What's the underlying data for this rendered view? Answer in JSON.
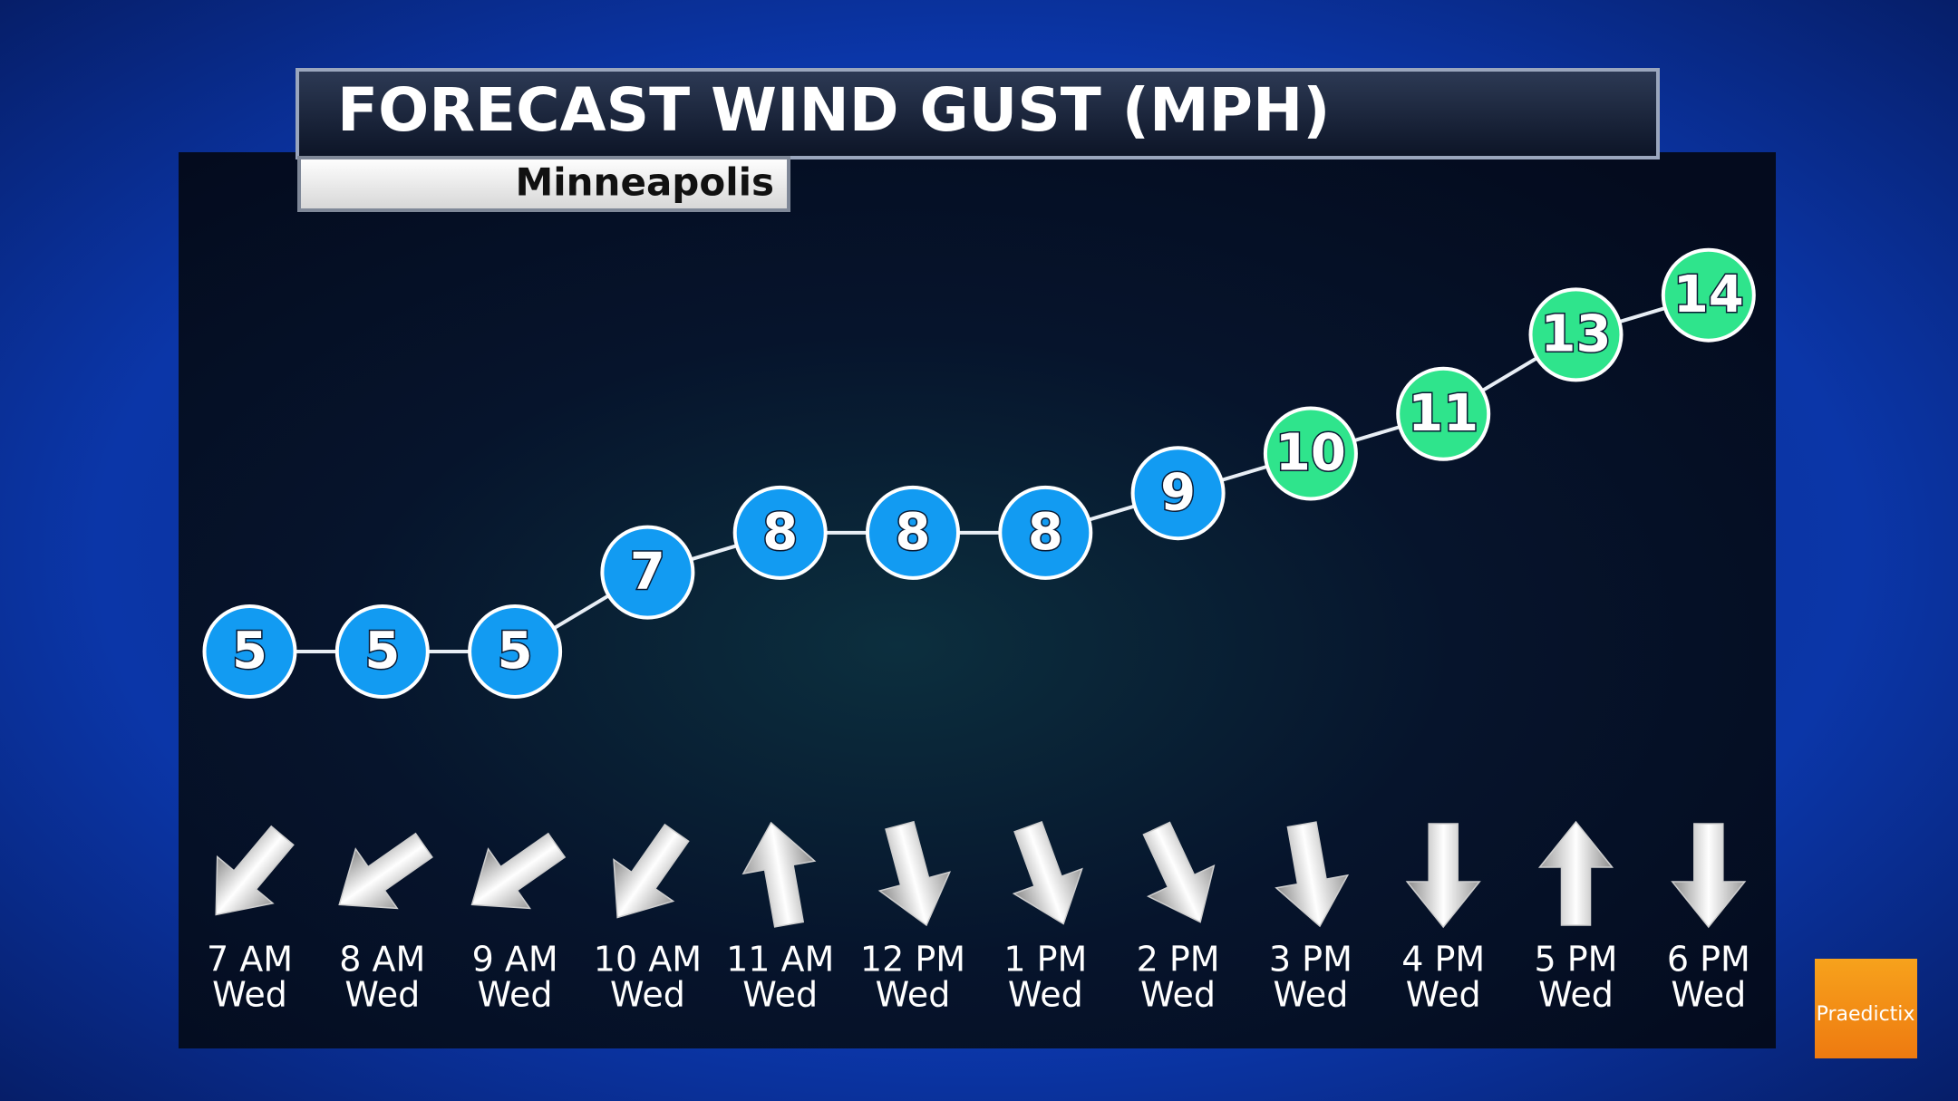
{
  "chart_data": {
    "type": "line",
    "title": "FORECAST WIND GUST (MPH)",
    "subtitle": "Minneapolis",
    "categories": [
      "7 AM",
      "8 AM",
      "9 AM",
      "10 AM",
      "11 AM",
      "12 PM",
      "1 PM",
      "2 PM",
      "3 PM",
      "4 PM",
      "5 PM",
      "6 PM"
    ],
    "days": [
      "Wed",
      "Wed",
      "Wed",
      "Wed",
      "Wed",
      "Wed",
      "Wed",
      "Wed",
      "Wed",
      "Wed",
      "Wed",
      "Wed"
    ],
    "values": [
      5,
      5,
      5,
      7,
      8,
      8,
      8,
      9,
      10,
      11,
      13,
      14
    ],
    "colors": [
      "#129bf2",
      "#129bf2",
      "#129bf2",
      "#129bf2",
      "#129bf2",
      "#129bf2",
      "#129bf2",
      "#129bf2",
      "#2fe48c",
      "#2fe48c",
      "#2fe48c",
      "#2fe48c"
    ],
    "wind_direction_deg": [
      220,
      235,
      235,
      215,
      350,
      165,
      160,
      155,
      170,
      180,
      0,
      180
    ],
    "logo": "Praedictix"
  }
}
